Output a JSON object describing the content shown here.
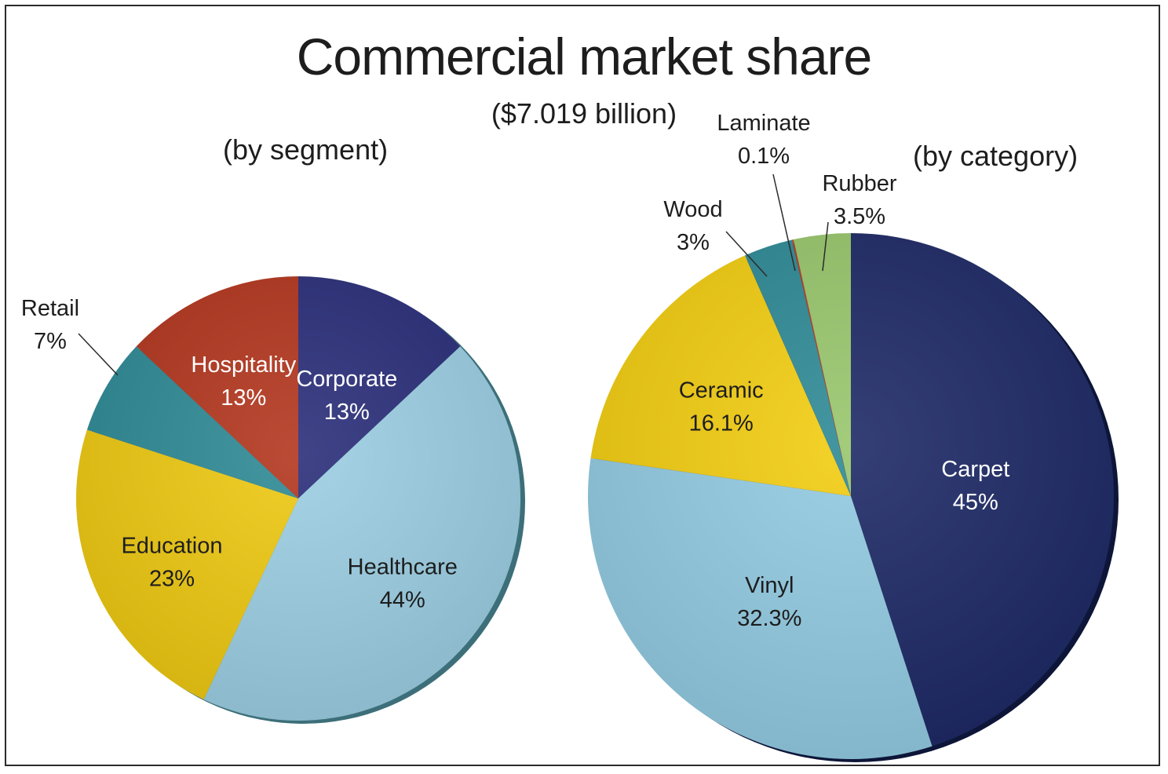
{
  "title": "Commercial market share",
  "subtitle": "($7.019 billion)",
  "chart_data": [
    {
      "type": "pie",
      "title": "(by segment)",
      "slices": [
        {
          "name": "Corporate",
          "label": "13%",
          "value": 13,
          "color": "#2b2f7a"
        },
        {
          "name": "Healthcare",
          "label": "44%",
          "value": 44,
          "color": "#9ccfe3"
        },
        {
          "name": "Education",
          "label": "23%",
          "value": 23,
          "color": "#eec913"
        },
        {
          "name": "Retail",
          "label": "7%",
          "value": 7,
          "color": "#2f8a96"
        },
        {
          "name": "Hospitality",
          "label": "13%",
          "value": 13,
          "color": "#b3371f"
        }
      ]
    },
    {
      "type": "pie",
      "title": "(by category)",
      "slices": [
        {
          "name": "Carpet",
          "label": "45%",
          "value": 45,
          "color": "#1e2a66"
        },
        {
          "name": "Vinyl",
          "label": "32.3%",
          "value": 32.3,
          "color": "#93cbe2"
        },
        {
          "name": "Ceramic",
          "label": "16.1%",
          "value": 16.1,
          "color": "#f2cd12"
        },
        {
          "name": "Wood",
          "label": "3%",
          "value": 3,
          "color": "#2f8a96"
        },
        {
          "name": "Laminate",
          "label": "0.1%",
          "value": 0.1,
          "color": "#c0391e"
        },
        {
          "name": "Rubber",
          "label": "3.5%",
          "value": 3.5,
          "color": "#98c66c"
        }
      ]
    }
  ]
}
